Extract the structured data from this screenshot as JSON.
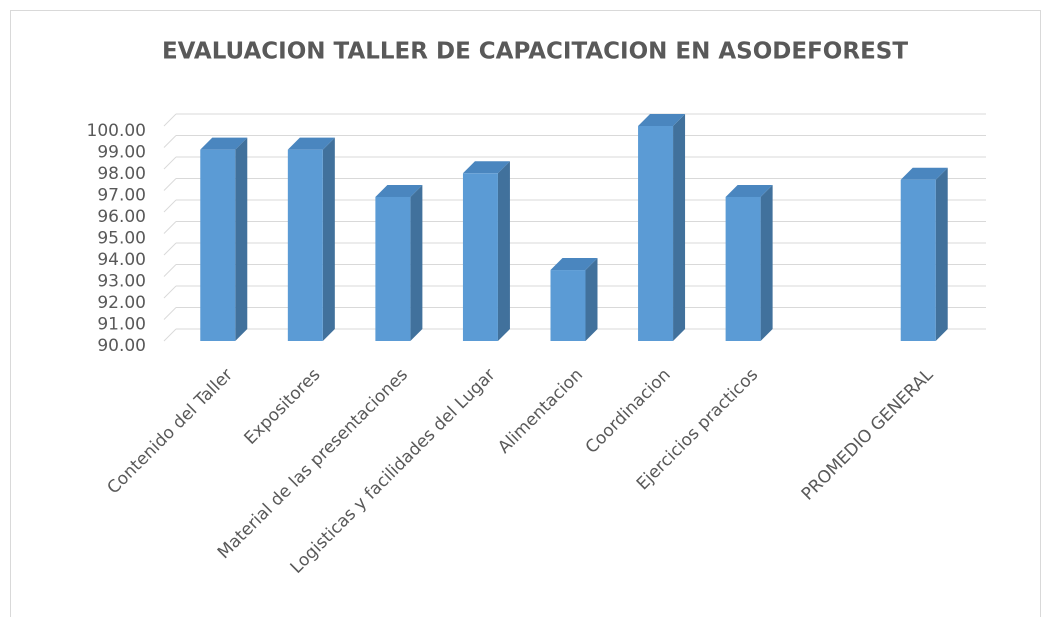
{
  "chart_data": {
    "type": "bar3d",
    "title": "EVALUACION TALLER DE CAPACITACION EN ASODEFOREST",
    "categories": [
      "Contenido del Taller",
      "Expositores",
      "Material de las presentaciones",
      "Logisticas y facilidades del Lugar",
      "Alimentacion",
      "Coordinacion",
      "Ejercicios practicos",
      null,
      "PROMEDIO GENERAL"
    ],
    "values": [
      98.9,
      98.9,
      96.7,
      97.8,
      93.3,
      100,
      96.7,
      null,
      97.5
    ],
    "color": "#5b9bd5",
    "ylim": [
      90,
      100
    ],
    "yticks": [
      {
        "value": 90,
        "label": "90.00"
      },
      {
        "value": 91,
        "label": "91.00"
      },
      {
        "value": 92,
        "label": "92.00"
      },
      {
        "value": 93,
        "label": "93.00"
      },
      {
        "value": 94,
        "label": "94.00"
      },
      {
        "value": 95,
        "label": "95.00"
      },
      {
        "value": 96,
        "label": "96.00"
      },
      {
        "value": 97,
        "label": "97.00"
      },
      {
        "value": 98,
        "label": "98.00"
      },
      {
        "value": 99,
        "label": "99.00"
      },
      {
        "value": 100,
        "label": "100.00"
      }
    ],
    "grid": true
  }
}
